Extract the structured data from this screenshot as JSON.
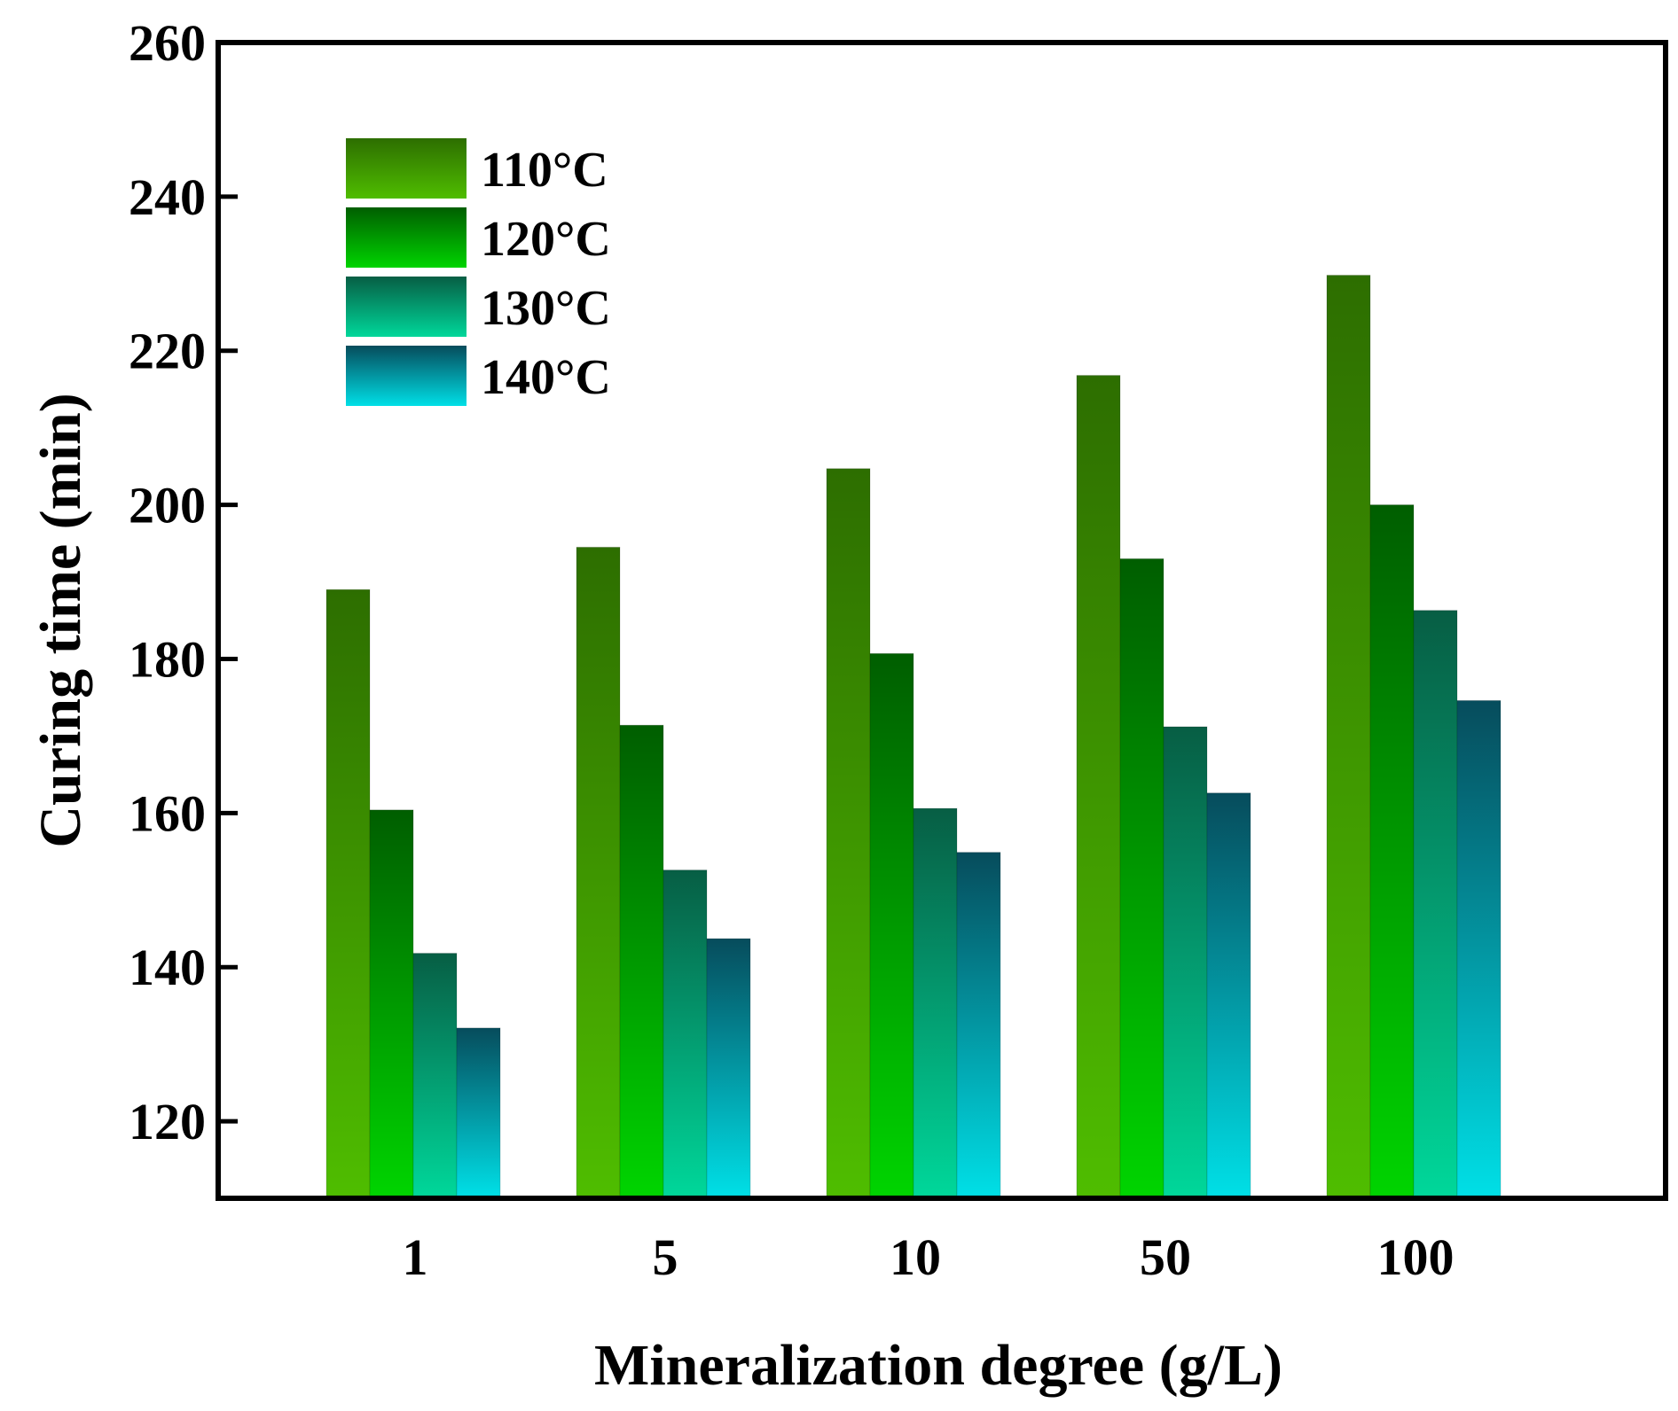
{
  "chart_data": {
    "type": "bar",
    "title": "",
    "xlabel": "Mineralization degree (g/L)",
    "ylabel": "Curing time (min)",
    "categories": [
      "1",
      "5",
      "10",
      "50",
      "100"
    ],
    "ylim": [
      110,
      260
    ],
    "yticks": [
      120,
      140,
      160,
      180,
      200,
      220,
      240,
      260
    ],
    "grid": false,
    "legend_position": "top-left",
    "series": [
      {
        "name": "110°C",
        "values": [
          189,
          194.5,
          204.7,
          216.8,
          229.8
        ],
        "color_top": "#2d6e00",
        "color_bottom": "#4fbd00"
      },
      {
        "name": "120°C",
        "values": [
          160.4,
          171.4,
          180.7,
          193,
          200
        ],
        "color_top": "#005e00",
        "color_bottom": "#00d400"
      },
      {
        "name": "130°C",
        "values": [
          141.8,
          152.6,
          160.6,
          171.2,
          186.3
        ],
        "color_top": "#075e44",
        "color_bottom": "#00d79a"
      },
      {
        "name": "140°C",
        "values": [
          132.1,
          143.7,
          154.9,
          162.6,
          174.6
        ],
        "color_top": "#064c5c",
        "color_bottom": "#00dfe6"
      }
    ]
  }
}
